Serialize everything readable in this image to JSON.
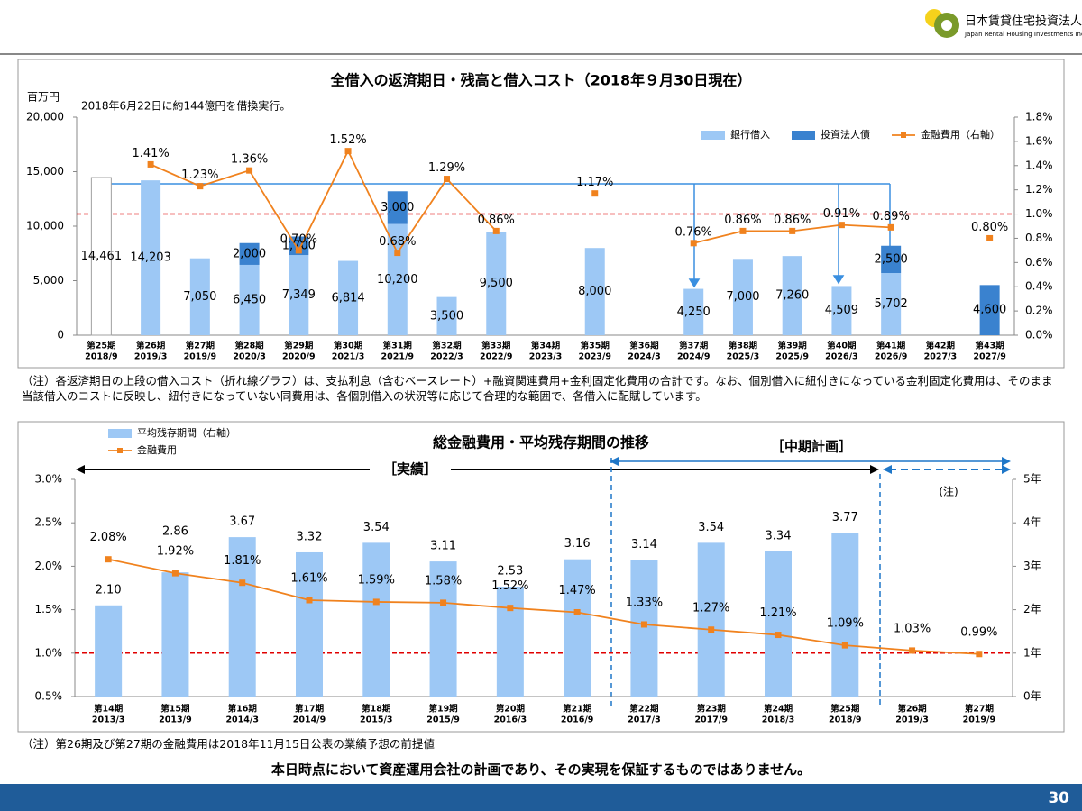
{
  "header": {
    "company": "日本賃貸住宅投資法人",
    "company_en": "Japan Rental Housing Investments Inc."
  },
  "chart_data": [
    {
      "type": "combo",
      "title": "全借入の返済期日・残高と借入コスト（2018年９月30日現在）",
      "y_label": "百万円",
      "annotation": "2018年6月22日に約144億円を借換実行。",
      "categories": [
        "第25期",
        "第26期",
        "第27期",
        "第28期",
        "第29期",
        "第30期",
        "第31期",
        "第32期",
        "第33期",
        "第34期",
        "第35期",
        "第36期",
        "第37期",
        "第38期",
        "第39期",
        "第40期",
        "第41期",
        "第42期",
        "第43期"
      ],
      "category_dates": [
        "2018/9",
        "2019/3",
        "2019/9",
        "2020/3",
        "2020/9",
        "2021/3",
        "2021/9",
        "2022/3",
        "2022/9",
        "2023/3",
        "2023/9",
        "2024/3",
        "2024/9",
        "2025/3",
        "2025/9",
        "2026/3",
        "2026/9",
        "2027/3",
        "2027/9"
      ],
      "stacked": true,
      "series": [
        {
          "color": "#ffffff",
          "edge_color": "#a0a0a0",
          "values": [
            14461,
            null,
            null,
            null,
            null,
            null,
            null,
            null,
            null,
            null,
            null,
            null,
            null,
            null,
            null,
            null,
            null,
            null,
            null
          ],
          "value_labels": [
            "14,461",
            null,
            null,
            null,
            null,
            null,
            null,
            null,
            null,
            null,
            null,
            null,
            null,
            null,
            null,
            null,
            null,
            null,
            null
          ]
        },
        {
          "name": "銀行借入",
          "color": "#9dc8f5",
          "values": [
            null,
            14203,
            7050,
            6450,
            7349,
            6814,
            10200,
            3500,
            9500,
            null,
            8000,
            null,
            4250,
            7000,
            7260,
            4509,
            5702,
            null,
            null
          ],
          "value_labels": [
            null,
            "14,203",
            "7,050",
            "6,450",
            "7,349",
            "6,814",
            "10,200",
            "3,500",
            "9,500",
            null,
            "8,000",
            null,
            "4,250",
            "7,000",
            "7,260",
            "4,509",
            "5,702",
            null,
            null
          ]
        },
        {
          "name": "投資法人債",
          "color": "#3a82cf",
          "values": [
            null,
            null,
            null,
            2000,
            1700,
            null,
            3000,
            null,
            null,
            null,
            null,
            null,
            null,
            null,
            null,
            null,
            2500,
            null,
            4600
          ],
          "value_labels": [
            null,
            null,
            null,
            "2,000",
            "1,700",
            null,
            "3,000",
            null,
            null,
            null,
            null,
            null,
            null,
            null,
            null,
            null,
            "2,500",
            null,
            "4,600"
          ]
        },
        {
          "name": "金融費用（右軸）",
          "type": "line",
          "axis": "y2",
          "color": "#f0821e",
          "values": [
            null,
            1.41,
            1.23,
            1.36,
            0.7,
            1.52,
            0.68,
            1.29,
            0.86,
            null,
            1.17,
            null,
            0.76,
            0.86,
            0.86,
            0.91,
            0.89,
            null,
            0.8
          ],
          "value_labels": [
            null,
            "1.41%",
            "1.23%",
            "1.36%",
            "0.70%",
            "1.52%",
            "0.68%",
            "1.29%",
            "0.86%",
            null,
            "1.17%",
            null,
            "0.76%",
            "0.86%",
            "0.86%",
            "0.91%",
            "0.89%",
            null,
            "0.80%"
          ]
        }
      ],
      "ylim": [
        0,
        20000
      ],
      "yticks": [
        0,
        {
          "value": 5000,
          "label": "5,000"
        },
        {
          "value": 10000,
          "label": "10,000"
        },
        {
          "value": 15000,
          "label": "15,000"
        },
        {
          "value": 20000,
          "label": "20,000"
        }
      ],
      "y2lim": [
        0,
        1.8
      ],
      "y2ticks": [
        {
          "value": 0,
          "label": "0.0%"
        },
        {
          "value": 0.2,
          "label": "0.2%"
        },
        {
          "value": 0.4,
          "label": "0.4%"
        },
        {
          "value": 0.6,
          "label": "0.6%"
        },
        {
          "value": 0.8,
          "label": "0.8%"
        },
        {
          "value": 1.0,
          "label": "1.0%"
        },
        {
          "value": 1.2,
          "label": "1.2%"
        },
        {
          "value": 1.4,
          "label": "1.4%"
        },
        {
          "value": 1.6,
          "label": "1.6%"
        },
        {
          "value": 1.8,
          "label": "1.8%"
        }
      ],
      "reference_line": {
        "value": 1.0,
        "axis": "y2",
        "color": "#e00000"
      },
      "legend": "top-right"
    },
    {
      "type": "combo",
      "title": "総金融費用・平均残存期間の推移",
      "categories": [
        "第14期",
        "第15期",
        "第16期",
        "第17期",
        "第18期",
        "第19期",
        "第20期",
        "第21期",
        "第22期",
        "第23期",
        "第24期",
        "第25期",
        "第26期",
        "第27期"
      ],
      "category_dates": [
        "2013/3",
        "2013/9",
        "2014/3",
        "2014/9",
        "2015/3",
        "2015/9",
        "2016/3",
        "2016/9",
        "2017/3",
        "2017/9",
        "2018/3",
        "2018/9",
        "2019/3",
        "2019/9"
      ],
      "series": [
        {
          "name": "平均残存期間（右軸）",
          "axis": "y2",
          "color": "#9dc8f5",
          "values": [
            2.1,
            2.86,
            3.67,
            3.32,
            3.54,
            3.11,
            2.53,
            3.16,
            3.14,
            3.54,
            3.34,
            3.77,
            null,
            null
          ],
          "value_labels": [
            "2.10",
            "2.86",
            "3.67",
            "3.32",
            "3.54",
            "3.11",
            "2.53",
            "3.16",
            "3.14",
            "3.54",
            "3.34",
            "3.77",
            null,
            null
          ]
        },
        {
          "name": "金融費用",
          "type": "line",
          "color": "#f0821e",
          "values": [
            2.08,
            1.92,
            1.81,
            1.61,
            1.59,
            1.58,
            1.52,
            1.47,
            1.33,
            1.27,
            1.21,
            1.09,
            1.03,
            0.99
          ],
          "value_labels": [
            "2.08%",
            "1.92%",
            "1.81%",
            "1.61%",
            "1.59%",
            "1.58%",
            "1.52%",
            "1.47%",
            "1.33%",
            "1.27%",
            "1.21%",
            "1.09%",
            "1.03%",
            "0.99%"
          ]
        }
      ],
      "ylim": [
        0.5,
        3.0
      ],
      "yticks": [
        {
          "value": 0.5,
          "label": "0.5%"
        },
        {
          "value": 1.0,
          "label": "1.0%"
        },
        {
          "value": 1.5,
          "label": "1.5%"
        },
        {
          "value": 2.0,
          "label": "2.0%"
        },
        {
          "value": 2.5,
          "label": "2.5%"
        },
        {
          "value": 3.0,
          "label": "3.0%"
        }
      ],
      "y2lim": [
        0,
        5
      ],
      "y2ticks": [
        {
          "value": 0,
          "label": "0年"
        },
        {
          "value": 1,
          "label": "1年"
        },
        {
          "value": 2,
          "label": "2年"
        },
        {
          "value": 3,
          "label": "3年"
        },
        {
          "value": 4,
          "label": "4年"
        },
        {
          "value": 5,
          "label": "5年"
        }
      ],
      "reference_line": {
        "value": 1.0,
        "axis": "y",
        "color": "#e00000"
      },
      "annotations": [
        "［実績］",
        "［中期計画］",
        "(注)"
      ],
      "legend": "top-left"
    }
  ],
  "notes": [
    "（注）各返済期日の上段の借入コスト（折れ線グラフ）は、支払利息（含むベースレート）+融資関連費用+金利固定化費用の合計です。なお、個別借入に紐付きになっている金利固定化費用は、そのまま当該借入のコストに反映し、紐付きになっていない同費用は、各個別借入の状況等に応じて合理的な範囲で、各借入に配賦しています。",
    "（注）第26期及び第27期の金融費用は2018年11月15日公表の業績予想の前提値"
  ],
  "disclaimer": "本日時点において資産運用会社の計画であり、その実現を保証するものではありません。",
  "page_number": 30
}
